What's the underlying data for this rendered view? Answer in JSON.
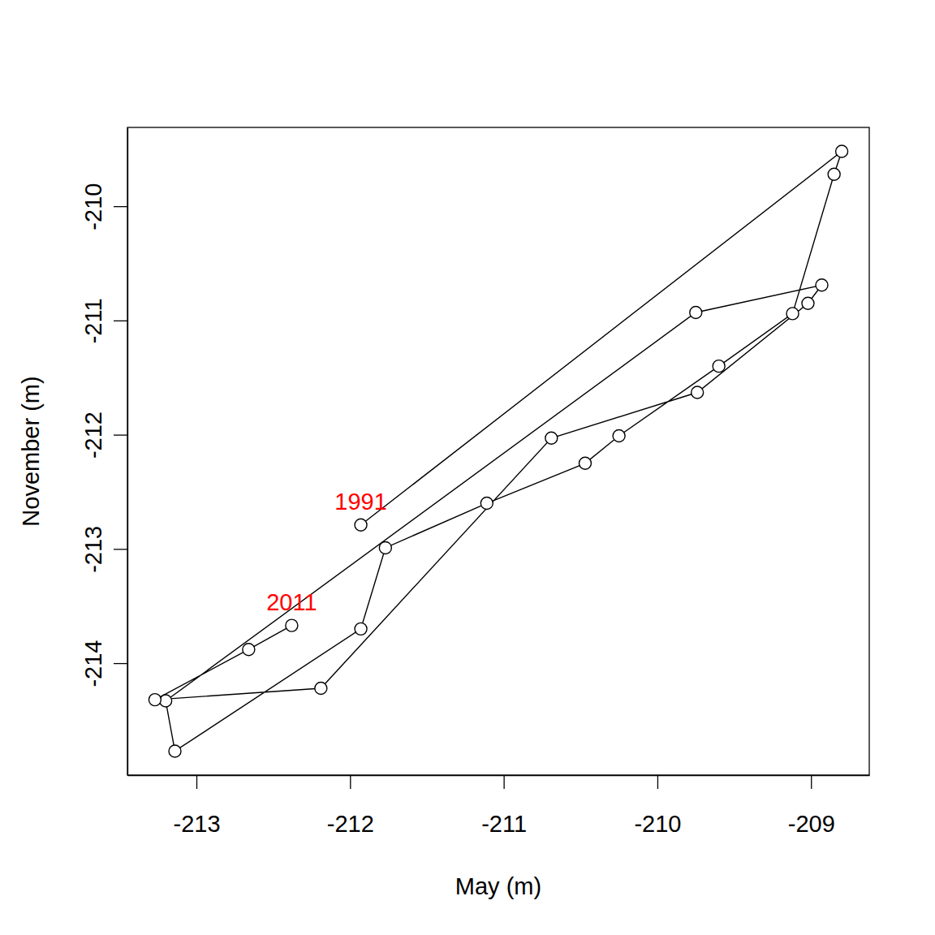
{
  "chart_data": {
    "type": "line",
    "marker": "circle",
    "line_style": "solid",
    "x_label": "May (m)",
    "y_label": "November (m)",
    "x": [
      -211.93,
      -208.8,
      -208.85,
      -209.12,
      -209.6,
      -210.25,
      -210.47,
      -211.11,
      -211.77,
      -211.93,
      -213.14,
      -213.2,
      -209.75,
      -208.93,
      -209.02,
      -209.74,
      -210.69,
      -212.19,
      -213.27,
      -212.66,
      -212.38
    ],
    "series": [
      {
        "color": "#000000",
        "values": [
          -212.79,
          -209.52,
          -209.72,
          -210.94,
          -211.4,
          -212.01,
          -212.25,
          -212.6,
          -212.99,
          -213.7,
          -214.77,
          -214.33,
          -210.93,
          -210.69,
          -210.85,
          -211.63,
          -212.03,
          -214.22,
          -214.32,
          -213.88,
          -213.67
        ]
      }
    ],
    "xlim": [
      -213.449,
      -208.621
    ],
    "ylim": [
      -214.98,
      -209.31
    ],
    "xticks": [
      -213,
      -212,
      -211,
      -210,
      -209
    ],
    "yticks": [
      -214,
      -213,
      -212,
      -211,
      -210
    ],
    "annotations": [
      {
        "text": "1991",
        "x": -211.93,
        "y": -212.79,
        "color": "#ff0000"
      },
      {
        "text": "2011",
        "x": -212.38,
        "y": -213.67,
        "color": "#ff0000"
      }
    ]
  }
}
